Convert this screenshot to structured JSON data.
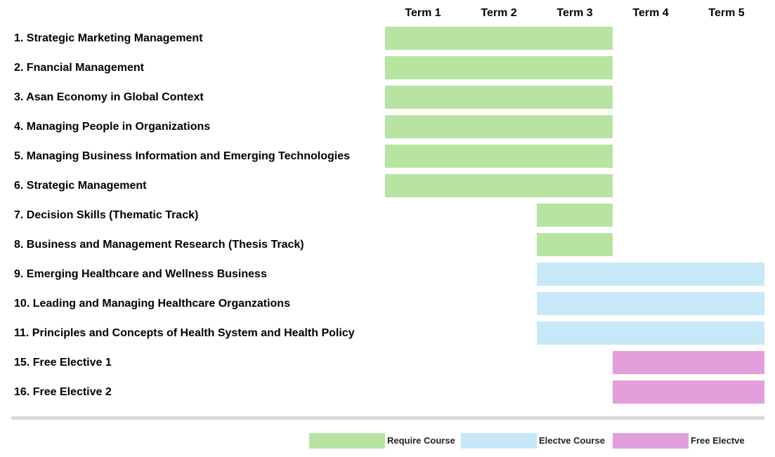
{
  "terms": [
    "Term 1",
    "Term 2",
    "Term 3",
    "Term 4",
    "Term 5"
  ],
  "colors": {
    "required": "#b7e4a1",
    "elective": "#c7e9f7",
    "free": "#e29fdb"
  },
  "courses": [
    {
      "label": "1. Strategic Marketing Management",
      "type": "required",
      "start_term": 1,
      "end_term": 3
    },
    {
      "label": "2. Fnancial Management",
      "type": "required",
      "start_term": 1,
      "end_term": 3
    },
    {
      "label": "3. Asan Economy in Global Context",
      "type": "required",
      "start_term": 1,
      "end_term": 3
    },
    {
      "label": "4. Managing People in Organizations",
      "type": "required",
      "start_term": 1,
      "end_term": 3
    },
    {
      "label": "5. Managing Business Information and Emerging Technologies",
      "type": "required",
      "start_term": 1,
      "end_term": 3
    },
    {
      "label": "6. Strategic Management",
      "type": "required",
      "start_term": 1,
      "end_term": 3
    },
    {
      "label": "7. Decision Skills (Thematic Track)",
      "type": "required",
      "start_term": 3,
      "end_term": 3
    },
    {
      "label": "8. Business and Management Research (Thesis Track)",
      "type": "required",
      "start_term": 3,
      "end_term": 3
    },
    {
      "label": "9. Emerging Healthcare and Wellness Business",
      "type": "elective",
      "start_term": 3,
      "end_term": 5
    },
    {
      "label": "10. Leading and Managing Healthcare Organzations",
      "type": "elective",
      "start_term": 3,
      "end_term": 5
    },
    {
      "label": "11. Principles and Concepts of Health System and Health Policy",
      "type": "elective",
      "start_term": 3,
      "end_term": 5
    },
    {
      "label": "15. Free Elective 1",
      "type": "free",
      "start_term": 4,
      "end_term": 5
    },
    {
      "label": "16. Free Elective 2",
      "type": "free",
      "start_term": 4,
      "end_term": 5
    }
  ],
  "legend": [
    {
      "type": "required",
      "label": "Require Course"
    },
    {
      "type": "elective",
      "label": "Electve Course"
    },
    {
      "type": "free",
      "label": "Free Electve"
    }
  ]
}
